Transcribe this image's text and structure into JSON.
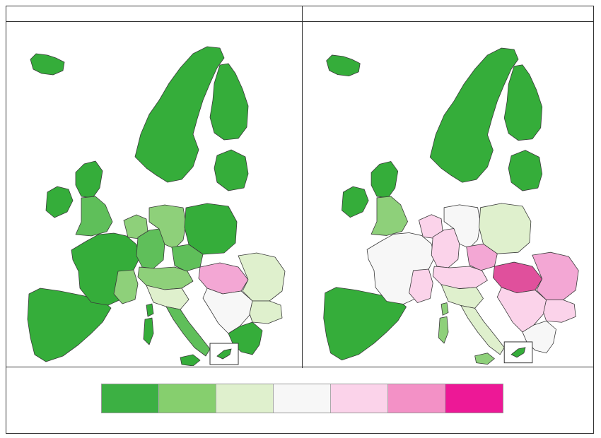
{
  "panels": [
    {
      "title": "",
      "regions": {
        "iceland": "#35ad3a",
        "scandinavia": "#35ad3a",
        "finland": "#35ad3a",
        "baltics": "#35ad3a",
        "ireland": "#35ad3a",
        "uk_north": "#35ad3a",
        "uk_south": "#5fbf5a",
        "iberia": "#35ad3a",
        "france": "#35ad3a",
        "france_se": "#8ed07a",
        "benelux": "#8ed07a",
        "germany_w": "#5fbf5a",
        "germany_e": "#8ed07a",
        "poland": "#35ad3a",
        "czech": "#5fbf5a",
        "alps": "#8ed07a",
        "italy_n": "#dff0cd",
        "italy_s": "#5fbf5a",
        "sicily": "#35ad3a",
        "sardinia": "#35ad3a",
        "hungary": "#f3a7d4",
        "romania": "#dff0cd",
        "bulgaria": "#dff0cd",
        "balkans": "#f7f7f7",
        "greece": "#35ad3a",
        "corsica": "#35ad3a"
      }
    },
    {
      "title": "",
      "regions": {
        "iceland": "#35ad3a",
        "scandinavia": "#35ad3a",
        "finland": "#35ad3a",
        "baltics": "#35ad3a",
        "ireland": "#35ad3a",
        "uk_north": "#35ad3a",
        "uk_south": "#8ed07a",
        "iberia": "#35ad3a",
        "france": "#f7f7f7",
        "france_se": "#fbd3ea",
        "benelux": "#fbd3ea",
        "germany_w": "#fbd3ea",
        "germany_e": "#f7f7f7",
        "poland": "#dff0cd",
        "czech": "#f3a7d4",
        "alps": "#fbd3ea",
        "italy_n": "#dff0cd",
        "italy_s": "#dff0cd",
        "sicily": "#8ed07a",
        "sardinia": "#8ed07a",
        "hungary": "#e0509c",
        "romania": "#f3a7d4",
        "bulgaria": "#fbd3ea",
        "balkans": "#fbd3ea",
        "greece": "#f7f7f7",
        "corsica": "#8ed07a"
      }
    }
  ],
  "legend": {
    "colors": [
      "#3cb043",
      "#86cf6e",
      "#dff0cd",
      "#f7f7f7",
      "#fbd3ea",
      "#f391c6",
      "#ed1896"
    ]
  }
}
